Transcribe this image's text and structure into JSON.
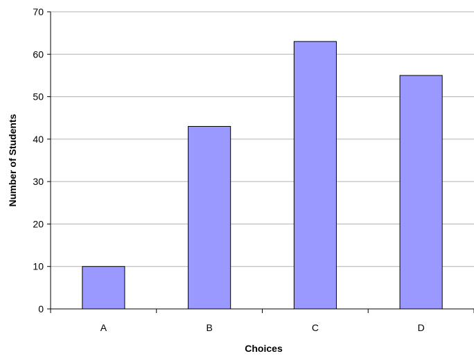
{
  "chart_data": {
    "type": "bar",
    "categories": [
      "A",
      "B",
      "C",
      "D"
    ],
    "values": [
      10,
      43,
      63,
      55
    ],
    "title": "",
    "xlabel": "Choices",
    "ylabel": "Number of Students",
    "ylim": [
      0,
      70
    ],
    "yticks": [
      "0",
      "10",
      "20",
      "30",
      "40",
      "50",
      "60",
      "70"
    ],
    "grid": true,
    "legend": "none",
    "colors": {
      "bar_fill": "#9999FF",
      "bar_stroke": "#000000",
      "grid": "#B0B0B0",
      "axis": "#000000"
    }
  }
}
